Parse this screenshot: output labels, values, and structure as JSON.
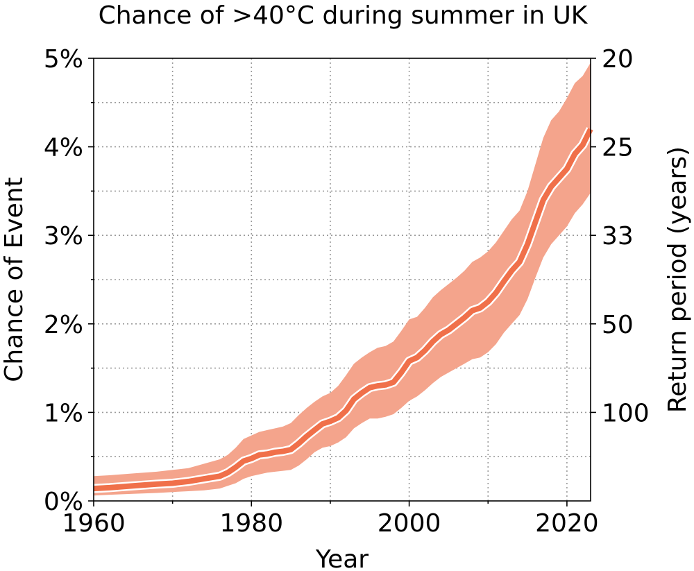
{
  "chart_data": {
    "type": "line",
    "title": "Chance of >40°C during summer in UK",
    "xlabel": "Year",
    "ylabel": "Chance of Event",
    "y2label": "Return period (years)",
    "xlim": [
      1960,
      2023
    ],
    "ylim": [
      0,
      5
    ],
    "grid": true,
    "x_ticks": [
      {
        "value": 1960,
        "label": "1960"
      },
      {
        "value": 1980,
        "label": "1980"
      },
      {
        "value": 2000,
        "label": "2000"
      },
      {
        "value": 2020,
        "label": "2020"
      }
    ],
    "x_minor_ticks": [
      1970,
      1990,
      2010
    ],
    "y_ticks": [
      {
        "value": 0,
        "label": "0%"
      },
      {
        "value": 1,
        "label": "1%"
      },
      {
        "value": 2,
        "label": "2%"
      },
      {
        "value": 3,
        "label": "3%"
      },
      {
        "value": 4,
        "label": "4%"
      },
      {
        "value": 5,
        "label": "5%"
      }
    ],
    "y_minor_ticks": [
      0.5,
      1.5,
      2.5,
      3.5,
      4.5
    ],
    "y2_ticks": [
      {
        "value": 1,
        "label": "100"
      },
      {
        "value": 2,
        "label": "50"
      },
      {
        "value": 3,
        "label": "33"
      },
      {
        "value": 4,
        "label": "25"
      },
      {
        "value": 5,
        "label": "20"
      }
    ],
    "line_color": "#f0704a",
    "band_color": "#f4a48c",
    "x": [
      1960,
      1962,
      1965,
      1968,
      1970,
      1972,
      1974,
      1976,
      1977,
      1978,
      1979,
      1980,
      1981,
      1982,
      1983,
      1984,
      1985,
      1986,
      1987,
      1988,
      1989,
      1990,
      1991,
      1992,
      1993,
      1994,
      1995,
      1996,
      1997,
      1998,
      1999,
      2000,
      2001,
      2002,
      2003,
      2004,
      2005,
      2006,
      2007,
      2008,
      2009,
      2010,
      2011,
      2012,
      2013,
      2014,
      2015,
      2016,
      2017,
      2018,
      2019,
      2020,
      2021,
      2022,
      2023
    ],
    "values": [
      0.14,
      0.15,
      0.17,
      0.19,
      0.2,
      0.22,
      0.25,
      0.28,
      0.32,
      0.38,
      0.45,
      0.48,
      0.52,
      0.53,
      0.55,
      0.56,
      0.58,
      0.65,
      0.73,
      0.8,
      0.87,
      0.9,
      0.94,
      1.02,
      1.15,
      1.22,
      1.28,
      1.3,
      1.31,
      1.34,
      1.45,
      1.58,
      1.62,
      1.7,
      1.8,
      1.88,
      1.93,
      2.0,
      2.07,
      2.15,
      2.18,
      2.25,
      2.35,
      2.48,
      2.6,
      2.7,
      2.9,
      3.15,
      3.4,
      3.55,
      3.65,
      3.75,
      3.92,
      4.02,
      4.2
    ],
    "upper": [
      0.28,
      0.29,
      0.31,
      0.33,
      0.35,
      0.37,
      0.42,
      0.47,
      0.52,
      0.6,
      0.7,
      0.74,
      0.78,
      0.8,
      0.82,
      0.84,
      0.88,
      0.97,
      1.05,
      1.12,
      1.18,
      1.22,
      1.3,
      1.42,
      1.55,
      1.62,
      1.68,
      1.73,
      1.75,
      1.8,
      1.92,
      2.05,
      2.08,
      2.18,
      2.3,
      2.38,
      2.45,
      2.52,
      2.6,
      2.7,
      2.75,
      2.82,
      2.92,
      3.05,
      3.18,
      3.28,
      3.5,
      3.8,
      4.1,
      4.3,
      4.4,
      4.55,
      4.72,
      4.8,
      4.95
    ],
    "lower": [
      0.06,
      0.07,
      0.08,
      0.09,
      0.1,
      0.11,
      0.12,
      0.14,
      0.17,
      0.2,
      0.25,
      0.28,
      0.3,
      0.32,
      0.33,
      0.34,
      0.35,
      0.4,
      0.47,
      0.55,
      0.6,
      0.62,
      0.66,
      0.72,
      0.82,
      0.88,
      0.93,
      0.93,
      0.95,
      0.98,
      1.05,
      1.13,
      1.18,
      1.25,
      1.33,
      1.4,
      1.45,
      1.5,
      1.55,
      1.6,
      1.62,
      1.68,
      1.77,
      1.9,
      2.0,
      2.1,
      2.28,
      2.52,
      2.75,
      2.9,
      3.0,
      3.1,
      3.25,
      3.35,
      3.48
    ]
  }
}
